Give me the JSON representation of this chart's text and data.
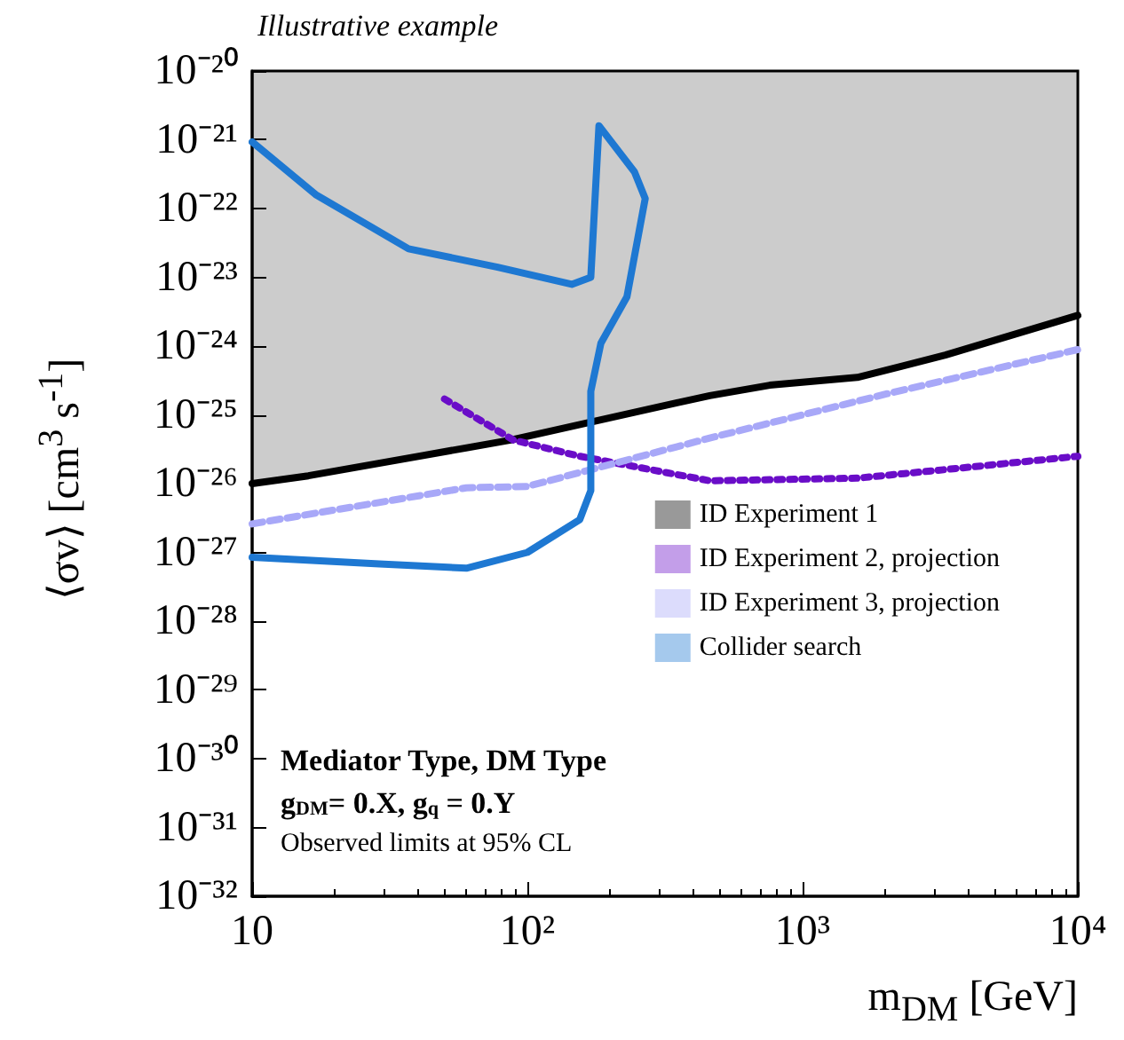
{
  "chart_data": {
    "type": "line",
    "xlabel": "m$_{DM}$ [GeV]",
    "ylabel": "⟨σv⟩ [cm$^{3}$ s$^{-1}$]",
    "annotations": [
      "Illustrative example",
      "Mediator Type, DM Type",
      "g$_{DM}$= 0.X, g$_{q}$ = 0.Y",
      "Observed limits at 95% CL"
    ],
    "log": "xy",
    "xlim": [
      10,
      10000
    ],
    "ylim": [
      1e-32,
      1e-20
    ],
    "xticks": [
      {
        "value": 10,
        "label": "10"
      },
      {
        "value": 100,
        "label": "10²"
      },
      {
        "value": 1000,
        "label": "10³"
      },
      {
        "value": 10000,
        "label": "10⁴"
      }
    ],
    "yticks": [
      {
        "value": 1e-32,
        "label": "10⁻³²"
      },
      {
        "value": 1e-31,
        "label": "10⁻³¹"
      },
      {
        "value": 1e-30,
        "label": "10⁻³⁰"
      },
      {
        "value": 1e-29,
        "label": "10⁻²⁹"
      },
      {
        "value": 1e-28,
        "label": "10⁻²⁸"
      },
      {
        "value": 1e-27,
        "label": "10⁻²⁷"
      },
      {
        "value": 1e-26,
        "label": "10⁻²⁶"
      },
      {
        "value": 1e-25,
        "label": "10⁻²⁵"
      },
      {
        "value": 1e-24,
        "label": "10⁻²⁴"
      },
      {
        "value": 1e-23,
        "label": "10⁻²³"
      },
      {
        "value": 1e-22,
        "label": "10⁻²²"
      },
      {
        "value": 1e-21,
        "label": "10⁻²¹"
      },
      {
        "value": 1e-20,
        "label": "10⁻²⁰"
      }
    ],
    "grid": false,
    "legend": "right",
    "marker": "none",
    "series": [
      {
        "name": "ID Experiment 1",
        "color": "#000000",
        "line_style": "solid",
        "x": [
          10,
          16,
          87,
          350,
          460,
          760,
          1580,
          3300,
          10000
        ],
        "values": [
          1e-26,
          1.3e-26,
          4.3e-26,
          1.5e-25,
          1.9e-25,
          2.7e-25,
          3.5e-25,
          7.4e-25,
          2.8e-24
        ],
        "lower": [
          1e-26,
          1.3e-26,
          4.3e-26,
          1.5e-25,
          1.9e-25,
          2.7e-25,
          3.5e-25,
          7.4e-25,
          2.8e-24
        ],
        "upper": [
          1e-20,
          1e-20,
          1e-20,
          1e-20,
          1e-20,
          1e-20,
          1e-20,
          1e-20,
          1e-20
        ]
      },
      {
        "name": "ID Experiment 2, projection",
        "color": "#6a0dc8",
        "line_style": "dotted",
        "x": [
          50,
          89,
          155,
          280,
          460,
          1580,
          3300,
          10000
        ],
        "values": [
          1.7e-25,
          4.3e-26,
          2.5e-26,
          1.6e-26,
          1.1e-26,
          1.2e-26,
          1.6e-26,
          2.5e-26
        ]
      },
      {
        "name": "ID Experiment 3, projection",
        "color": "#a8a8f8",
        "line_style": "dashed",
        "x": [
          10,
          60,
          100,
          460,
          2000,
          10000
        ],
        "values": [
          2.6e-27,
          8.7e-27,
          9.1e-27,
          4.6e-26,
          2e-25,
          8.9e-25
        ]
      },
      {
        "name": "Collider search",
        "color": "#1e78d2",
        "line_style": "solid",
        "x": [
          10,
          17,
          37,
          78,
          145,
          170,
          182,
          245,
          268,
          230,
          185,
          170,
          170,
          155,
          100,
          60,
          29,
          10
        ],
        "values": [
          9.3e-22,
          1.6e-22,
          2.6e-23,
          1.4e-23,
          7.9e-24,
          1e-23,
          1.6e-21,
          3.4e-22,
          1.4e-22,
          5.2e-24,
          1.1e-24,
          2.2e-25,
          7.9e-27,
          3e-27,
          1e-27,
          5.9e-28,
          6.8e-28,
          8.5e-28
        ]
      }
    ]
  }
}
